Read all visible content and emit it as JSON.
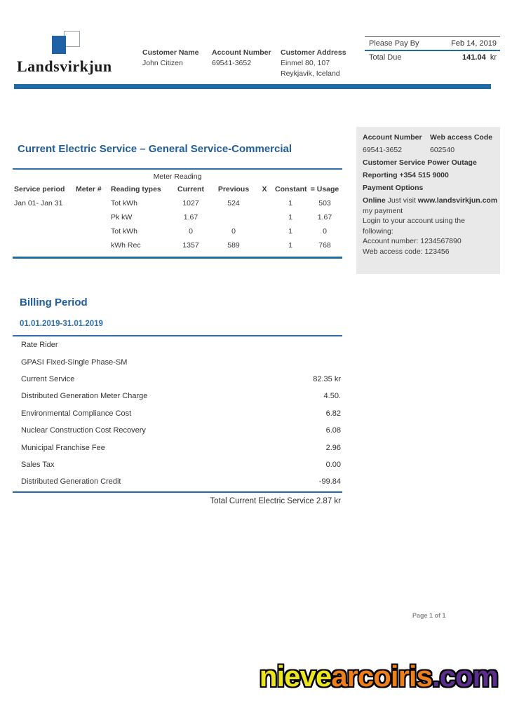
{
  "brand": {
    "name": "Landsvirkjun"
  },
  "header": {
    "customer_name_label": "Customer Name",
    "customer_name": "John Citizen",
    "account_number_label": "Account Number",
    "account_number": "69541-3652",
    "customer_address_label": "Customer Address",
    "address_line1": "Einmel 80, 107",
    "address_line2": "Reykjavik, Iceland"
  },
  "paybox": {
    "pay_by_label": "Please Pay By",
    "pay_by_date": "Feb 14, 2019",
    "total_due_label": "Total Due",
    "total_due_amount": "141.04",
    "currency": "kr"
  },
  "meter_section": {
    "title": "Current Electric Service – General Service-Commercial",
    "table_caption": "Meter Reading",
    "columns": [
      "Service period",
      "Meter #",
      "Reading types",
      "Current",
      "Previous",
      "X",
      "Constant",
      "= Usage"
    ],
    "rows": [
      [
        "Jan 01- Jan 31",
        "",
        "Tot kWh",
        "1027",
        "524",
        "",
        "1",
        "503"
      ],
      [
        "",
        "",
        "Pk kW",
        "1.67",
        "",
        "",
        "1",
        "1.67"
      ],
      [
        "",
        "",
        "Tot kWh",
        "0",
        "0",
        "",
        "1",
        "0"
      ],
      [
        "",
        "",
        "kWh Rec",
        "1357",
        "589",
        "",
        "1",
        "768"
      ]
    ]
  },
  "sidebar": {
    "account_number_label": "Account Number",
    "web_access_label": "Web access Code",
    "account_number": "69541-3652",
    "web_access_code": "602540",
    "customer_service_line1": "Customer Service Power Outage",
    "customer_service_line2": "Reporting +354 515 9000",
    "payment_options_label": "Payment Options",
    "online_bold": "Online",
    "online_rest": " Just visit ",
    "online_url": "www.landsvirkjun.com",
    "line_my_payment": "my payment",
    "line_login1": "Login to your account using the",
    "line_login2": "following:",
    "line_account": "Account number: 1234567890",
    "line_web_code": "Web access code: 123456"
  },
  "billing_section": {
    "title": "Billing Period",
    "period": "01.01.2019-31.01.2019",
    "rows": [
      {
        "label": "Rate Rider",
        "amount": ""
      },
      {
        "label": "GPASI Fixed-Single Phase-SM",
        "amount": ""
      },
      {
        "label": "Current Service",
        "amount": "82.35 kr"
      },
      {
        "label": "Distributed Generation Meter Charge",
        "amount": "4.50."
      },
      {
        "label": "Environmental Compliance Cost",
        "amount": "6.82"
      },
      {
        "label": "Nuclear Construction Cost Recovery",
        "amount": "6.08"
      },
      {
        "label": "Municipal Franchise Fee",
        "amount": "2.96"
      },
      {
        "label": "Sales Tax",
        "amount": "0.00"
      },
      {
        "label": "Distributed Generation Credit",
        "amount": "-99.84"
      }
    ],
    "total_label": "Total Current Electric Service 2.87 kr"
  },
  "footer": {
    "page_indicator": "Page 1 of 1"
  },
  "watermark": {
    "part1": "nieve",
    "part2": "arcoiris",
    "part3": ".com"
  },
  "colors": {
    "accent_blue": "#1f6ba5",
    "title_blue": "#215d9b",
    "sidebar_bg": "#e9e9e9",
    "watermark_yellow": "#ece51c",
    "watermark_orange": "#ee7f1a",
    "watermark_purple": "#5b2d8e"
  }
}
